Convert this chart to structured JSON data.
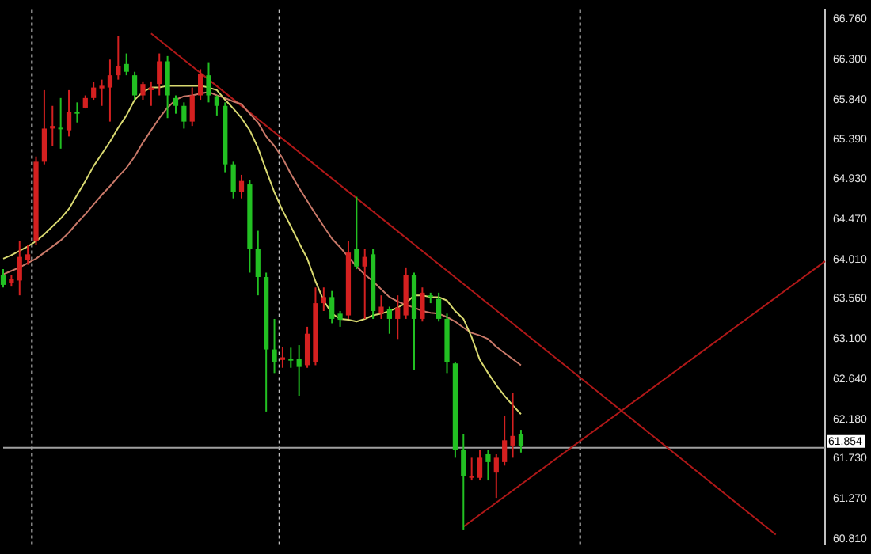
{
  "chart_data": {
    "type": "candlestick",
    "categories": [
      null,
      null,
      null,
      null,
      null,
      null,
      null,
      null,
      null,
      null,
      null,
      null,
      null,
      null,
      null,
      null,
      null,
      null,
      null,
      null,
      null,
      null,
      null,
      null,
      null,
      null,
      null,
      null,
      null,
      null,
      null,
      null,
      null,
      null,
      null,
      null,
      null,
      null,
      null,
      null,
      null,
      null,
      null,
      null,
      null,
      null,
      null,
      null,
      null,
      null,
      null,
      null,
      null,
      null,
      null,
      null,
      null,
      null,
      null,
      null,
      null,
      null,
      null,
      null,
      null,
      null,
      null,
      null,
      null,
      null,
      null,
      null,
      null,
      null,
      null,
      null,
      null,
      null,
      null,
      null,
      null,
      null,
      null,
      null,
      null,
      null,
      null,
      null,
      null,
      null,
      null,
      null,
      null,
      null,
      null,
      null,
      null,
      null,
      null,
      null,
      null
    ],
    "ohlc": [
      [
        63.83,
        63.9,
        63.69,
        63.72
      ],
      [
        63.74,
        63.83,
        63.7,
        63.79
      ],
      [
        63.77,
        64.22,
        63.6,
        64.04
      ],
      [
        64.0,
        64.18,
        63.95,
        64.07
      ],
      [
        64.22,
        65.19,
        64.18,
        65.13
      ],
      [
        65.13,
        65.95,
        65.1,
        65.51
      ],
      [
        65.51,
        65.77,
        65.31,
        65.54
      ],
      [
        65.52,
        65.86,
        65.28,
        65.51
      ],
      [
        65.49,
        65.95,
        65.42,
        65.7
      ],
      [
        65.7,
        65.81,
        65.58,
        65.68
      ],
      [
        65.75,
        65.89,
        65.74,
        65.86
      ],
      [
        65.86,
        66.04,
        65.84,
        65.98
      ],
      [
        65.97,
        66.07,
        65.77,
        66.0
      ],
      [
        65.98,
        66.3,
        65.59,
        66.12
      ],
      [
        66.12,
        66.57,
        66.07,
        66.23
      ],
      [
        66.25,
        66.37,
        66.12,
        66.16
      ],
      [
        66.12,
        66.16,
        65.84,
        65.89
      ],
      [
        65.89,
        66.05,
        65.84,
        66.02
      ],
      [
        65.95,
        66.05,
        65.77,
        65.98
      ],
      [
        66.02,
        66.37,
        65.89,
        66.28
      ],
      [
        66.28,
        66.34,
        65.63,
        65.89
      ],
      [
        65.86,
        65.89,
        65.68,
        65.77
      ],
      [
        65.77,
        65.81,
        65.51,
        65.59
      ],
      [
        65.59,
        65.98,
        65.54,
        65.89
      ],
      [
        65.89,
        66.19,
        65.84,
        66.14
      ],
      [
        66.12,
        66.27,
        65.81,
        65.89
      ],
      [
        65.88,
        65.89,
        65.66,
        65.77
      ],
      [
        65.77,
        65.81,
        65.01,
        65.1
      ],
      [
        65.1,
        65.13,
        64.71,
        64.78
      ],
      [
        64.78,
        64.98,
        64.71,
        64.91
      ],
      [
        64.87,
        64.92,
        63.86,
        64.13
      ],
      [
        64.13,
        64.34,
        63.6,
        63.81
      ],
      [
        63.81,
        63.86,
        62.27,
        62.98
      ],
      [
        62.98,
        63.33,
        62.71,
        62.84
      ],
      [
        62.86,
        63.01,
        62.77,
        62.89
      ],
      [
        62.87,
        63.0,
        62.77,
        62.86
      ],
      [
        62.87,
        63.03,
        62.45,
        62.78
      ],
      [
        62.8,
        63.24,
        62.77,
        63.16
      ],
      [
        62.84,
        63.69,
        62.8,
        63.51
      ],
      [
        63.51,
        63.69,
        63.42,
        63.58
      ],
      [
        63.58,
        63.65,
        63.28,
        63.33
      ],
      [
        63.39,
        63.42,
        63.24,
        63.32
      ],
      [
        63.37,
        64.22,
        63.33,
        64.09
      ],
      [
        64.13,
        64.73,
        63.9,
        63.93
      ],
      [
        63.93,
        64.13,
        63.33,
        64.04
      ],
      [
        64.07,
        64.13,
        63.33,
        63.42
      ],
      [
        63.39,
        63.6,
        63.33,
        63.47
      ],
      [
        63.44,
        63.47,
        63.16,
        63.33
      ],
      [
        63.33,
        63.6,
        63.1,
        63.46
      ],
      [
        63.37,
        63.92,
        63.33,
        63.83
      ],
      [
        63.83,
        63.86,
        62.75,
        63.33
      ],
      [
        63.33,
        63.69,
        63.3,
        63.63
      ],
      [
        63.6,
        63.63,
        63.51,
        63.58
      ],
      [
        63.56,
        63.63,
        63.3,
        63.33
      ],
      [
        63.33,
        63.39,
        62.71,
        62.84
      ],
      [
        62.82,
        62.84,
        61.74,
        61.83
      ],
      [
        61.83,
        62.01,
        60.91,
        61.53
      ],
      [
        61.51,
        61.74,
        61.48,
        61.53
      ],
      [
        61.51,
        61.83,
        61.48,
        61.74
      ],
      [
        61.78,
        61.83,
        61.48,
        61.69
      ],
      [
        61.57,
        61.78,
        61.28,
        61.74
      ],
      [
        61.69,
        62.22,
        61.65,
        61.94
      ],
      [
        61.88,
        62.48,
        61.74,
        61.99
      ],
      [
        62.01,
        62.06,
        61.8,
        61.87
      ],
      null,
      null,
      null,
      null,
      null,
      null,
      null,
      null,
      null,
      null,
      null,
      null,
      null,
      null,
      null,
      null,
      null,
      null,
      null,
      null,
      null,
      null,
      null,
      null,
      null,
      null,
      null,
      null,
      null,
      null,
      null,
      null,
      null,
      null,
      null,
      null,
      null
    ],
    "colors": [
      "#22c022",
      "#d42020",
      "#d42020",
      "#d42020",
      "#d42020",
      "#d42020",
      "#d42020",
      "#22c022",
      "#d42020",
      "#22c022",
      "#d42020",
      "#d42020",
      "#d42020",
      "#d42020",
      "#d42020",
      "#22c022",
      "#22c022",
      "#d42020",
      "#d42020",
      "#d42020",
      "#22c022",
      "#22c022",
      "#22c022",
      "#d42020",
      "#d42020",
      "#22c022",
      "#22c022",
      "#22c022",
      "#22c022",
      "#d42020",
      "#22c022",
      "#22c022",
      "#22c022",
      "#22c022",
      "#d42020",
      "#22c022",
      "#22c022",
      "#d42020",
      "#d42020",
      "#d42020",
      "#22c022",
      "#22c022",
      "#d42020",
      "#22c022",
      "#d42020",
      "#22c022",
      "#d42020",
      "#22c022",
      "#d42020",
      "#d42020",
      "#22c022",
      "#d42020",
      "#22c022",
      "#22c022",
      "#22c022",
      "#22c022",
      "#22c022",
      "#d42020",
      "#d42020",
      "#22c022",
      "#d42020",
      "#d42020",
      "#d42020",
      "#22c022",
      null,
      null,
      null,
      null,
      null,
      null,
      null,
      null,
      null,
      null,
      null,
      null,
      null,
      null,
      null,
      null,
      null,
      null,
      null,
      null,
      null,
      null,
      null,
      null,
      null,
      null,
      null,
      null,
      null,
      null,
      null,
      null,
      null,
      null,
      null,
      null,
      null
    ],
    "series": [
      {
        "type": "line",
        "color": "#d8d870",
        "values": [
          64.02,
          64.06,
          64.11,
          64.16,
          64.22,
          64.3,
          64.39,
          64.48,
          64.59,
          64.75,
          64.91,
          65.08,
          65.22,
          65.36,
          65.52,
          65.66,
          65.84,
          65.93,
          65.98,
          65.98,
          66.0,
          66.0,
          66.0,
          66.0,
          66.0,
          65.98,
          65.95,
          65.84,
          65.74,
          65.63,
          65.49,
          65.29,
          65.03,
          64.78,
          64.57,
          64.39,
          64.2,
          64.02,
          63.76,
          63.54,
          63.39,
          63.33,
          63.32,
          63.3,
          63.33,
          63.37,
          63.39,
          63.42,
          63.46,
          63.51,
          63.6,
          63.6,
          63.58,
          63.58,
          63.54,
          63.42,
          63.33,
          63.12,
          62.86,
          62.71,
          62.57,
          62.45,
          62.34,
          62.24,
          null,
          null,
          null,
          null,
          null,
          null,
          null,
          null,
          null,
          null,
          null,
          null,
          null,
          null,
          null,
          null,
          null,
          null,
          null,
          null,
          null,
          null,
          null,
          null,
          null,
          null,
          null,
          null,
          null,
          null,
          null,
          null,
          null,
          null,
          null,
          null,
          null
        ]
      },
      {
        "type": "line",
        "color": "#c87868",
        "values": [
          63.84,
          63.88,
          63.92,
          63.97,
          64.02,
          64.09,
          64.16,
          64.23,
          64.32,
          64.43,
          64.53,
          64.64,
          64.75,
          64.85,
          64.96,
          65.06,
          65.19,
          65.35,
          65.49,
          65.63,
          65.75,
          65.84,
          65.88,
          65.89,
          65.91,
          65.93,
          65.89,
          65.86,
          65.82,
          65.79,
          65.68,
          65.58,
          65.42,
          65.31,
          65.17,
          64.99,
          64.83,
          64.68,
          64.53,
          64.39,
          64.25,
          64.15,
          64.04,
          63.93,
          63.84,
          63.76,
          63.67,
          63.58,
          63.53,
          63.49,
          63.46,
          63.42,
          63.4,
          63.39,
          63.35,
          63.3,
          63.23,
          63.17,
          63.14,
          63.1,
          63.01,
          62.94,
          62.87,
          62.8,
          null,
          null,
          null,
          null,
          null,
          null,
          null,
          null,
          null,
          null,
          null,
          null,
          null,
          null,
          null,
          null,
          null,
          null,
          null,
          null,
          null,
          null,
          null,
          null,
          null,
          null,
          null,
          null,
          null,
          null,
          null,
          null,
          null,
          null,
          null,
          null,
          null
        ]
      },
      {
        "type": "line",
        "color": "#b01818",
        "values": [
          null,
          null,
          null,
          null,
          null,
          null,
          null,
          null,
          null,
          null,
          null,
          null,
          null,
          null,
          null,
          null,
          null,
          null,
          66.6,
          null,
          null,
          null,
          null,
          null,
          null,
          null,
          null,
          null,
          null,
          null,
          null,
          null,
          null,
          null,
          null,
          null,
          null,
          null,
          null,
          null,
          null,
          null,
          null,
          null,
          null,
          null,
          null,
          null,
          null,
          null,
          null,
          null,
          null,
          null,
          null,
          null,
          null,
          null,
          null,
          null,
          null,
          null,
          null,
          null,
          null,
          null,
          null,
          null,
          null,
          null,
          null,
          null,
          null,
          null,
          null,
          null,
          null,
          null,
          null,
          null,
          null,
          null,
          null,
          null,
          null,
          null,
          null,
          null,
          null,
          null,
          null,
          null,
          null,
          null,
          60.86,
          null,
          null,
          null,
          null,
          null,
          null
        ]
      },
      {
        "type": "line",
        "color": "#b01818",
        "values": [
          null,
          null,
          null,
          null,
          null,
          null,
          null,
          null,
          null,
          null,
          null,
          null,
          null,
          null,
          null,
          null,
          null,
          null,
          null,
          null,
          null,
          null,
          null,
          null,
          null,
          null,
          null,
          null,
          null,
          null,
          null,
          null,
          null,
          null,
          null,
          null,
          null,
          null,
          null,
          null,
          null,
          null,
          null,
          null,
          null,
          null,
          null,
          null,
          null,
          null,
          null,
          null,
          null,
          null,
          null,
          null,
          60.95,
          null,
          null,
          null,
          null,
          null,
          null,
          null,
          null,
          null,
          null,
          null,
          null,
          null,
          null,
          null,
          null,
          null,
          null,
          null,
          null,
          null,
          null,
          null,
          null,
          null,
          null,
          null,
          null,
          null,
          null,
          null,
          null,
          null,
          null,
          null,
          null,
          null,
          null,
          null,
          null,
          null,
          null,
          null,
          63.99
        ]
      }
    ],
    "ylim": [
      60.75,
      66.87
    ],
    "yticks": [
      {
        "value": 60.81,
        "label": "60.810"
      },
      {
        "value": 61.27,
        "label": "61.270"
      },
      {
        "value": 61.73,
        "label": "61.730"
      },
      {
        "value": 62.18,
        "label": "62.180"
      },
      {
        "value": 62.64,
        "label": "62.640"
      },
      {
        "value": 63.1,
        "label": "63.100"
      },
      {
        "value": 63.56,
        "label": "63.560"
      },
      {
        "value": 64.01,
        "label": "64.010"
      },
      {
        "value": 64.47,
        "label": "64.470"
      },
      {
        "value": 64.93,
        "label": "64.930"
      },
      {
        "value": 65.39,
        "label": "65.390"
      },
      {
        "value": 65.84,
        "label": "65.840"
      },
      {
        "value": 66.3,
        "label": "66.300"
      },
      {
        "value": 66.76,
        "label": "66.760"
      }
    ],
    "ref_lines": [
      {
        "axis": "y",
        "value": 61.854,
        "label": "61.854",
        "color": "#a0a0a0"
      }
    ],
    "marker": "none"
  }
}
